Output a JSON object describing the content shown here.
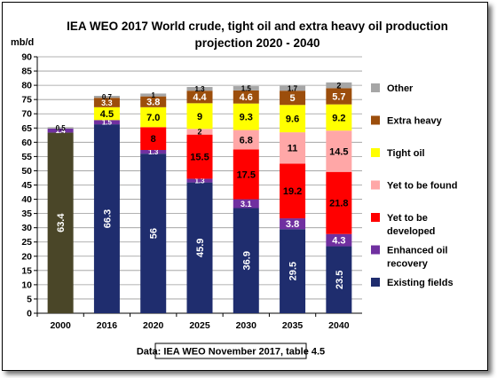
{
  "chart_data": {
    "type": "bar",
    "stacked": true,
    "title_lines": [
      "IEA WEO 2017 World crude, tight oil and extra heavy oil production",
      "projection 2020 - 2040"
    ],
    "ylabel": "mb/d",
    "ylim": [
      0,
      90
    ],
    "yticks": [
      0,
      5,
      10,
      15,
      20,
      25,
      30,
      35,
      40,
      45,
      50,
      55,
      60,
      65,
      70,
      75,
      80,
      85,
      90
    ],
    "grid": true,
    "legend_position": "right",
    "categories": [
      "2000",
      "2016",
      "2020",
      "2025",
      "2030",
      "2035",
      "2040"
    ],
    "series": [
      {
        "name": "Existing fields",
        "color": "#1f2d6e",
        "label_color": "#ffffff",
        "values": [
          null,
          66.3,
          56,
          45.9,
          36.9,
          29.5,
          23.5
        ]
      },
      {
        "name": "Enhanced oil recovery",
        "color": "#7030a0",
        "label_color": "#ffffff",
        "values": [
          1.4,
          1.5,
          1.3,
          1.3,
          3.1,
          3.8,
          4.3
        ]
      },
      {
        "name": "Yet to be developed",
        "color": "#ff0000",
        "label_color": "#000000",
        "values": [
          null,
          null,
          8,
          15.5,
          17.5,
          19.2,
          21.8
        ]
      },
      {
        "name": "Yet to be found",
        "color": "#ffa7a7",
        "label_color": "#000000",
        "values": [
          null,
          null,
          null,
          2,
          6.8,
          11,
          14.5
        ]
      },
      {
        "name": "Tight oil",
        "color": "#ffff00",
        "label_color": "#000000",
        "values": [
          null,
          4.5,
          7.0,
          9,
          9.3,
          9.6,
          9.2
        ]
      },
      {
        "name": "Extra heavy",
        "color": "#9c4e0c",
        "label_color": "#ffffff",
        "values": [
          null,
          3.3,
          3.8,
          4.4,
          4.6,
          5,
          5.7
        ]
      },
      {
        "name": "Other",
        "color": "#a6a6a6",
        "label_color": "#000000",
        "values": [
          0.5,
          0.7,
          1,
          1.3,
          1.5,
          1.7,
          2
        ]
      }
    ],
    "crude_2000": {
      "value": 63.4,
      "color": "#4a4628",
      "label_color": "#ffffff"
    },
    "labels": [
      [
        "",
        "66.3",
        "56",
        "45.9",
        "36.9",
        "29.5",
        "23.5"
      ],
      [
        "1.4",
        "1.5",
        "1.3",
        "1.3",
        "3.1",
        "3.8",
        "4.3"
      ],
      [
        "",
        "",
        "8",
        "15.5",
        "17.5",
        "19.2",
        "21.8"
      ],
      [
        "",
        "",
        "",
        "2",
        "6.8",
        "11",
        "14.5"
      ],
      [
        "",
        "4.5",
        "7.0",
        "9",
        "9.3",
        "9.6",
        "9.2"
      ],
      [
        "",
        "3.3",
        "3.8",
        "4.4",
        "4.6",
        "5",
        "5.7"
      ],
      [
        "0.5",
        "0.7",
        "1",
        "1.3",
        "1.5",
        "1.7",
        "2"
      ]
    ],
    "crude_2000_label": "63.4",
    "legend_order": [
      "Other",
      "Extra heavy",
      "Tight oil",
      "Yet to be found",
      "Yet to be developed",
      "Enhanced oil recovery",
      "Existing fields"
    ],
    "legend_lines": {
      "Other": [
        "Other"
      ],
      "Extra heavy": [
        "Extra heavy"
      ],
      "Tight oil": [
        "Tight oil"
      ],
      "Yet to be found": [
        "Yet to be found"
      ],
      "Yet to be developed": [
        "Yet to be",
        "developed"
      ],
      "Enhanced oil recovery": [
        "Enhanced oil",
        "recovery"
      ],
      "Existing fields": [
        "Existing fields"
      ]
    },
    "source": "Data: IEA WEO November 2017, table 4.5"
  }
}
